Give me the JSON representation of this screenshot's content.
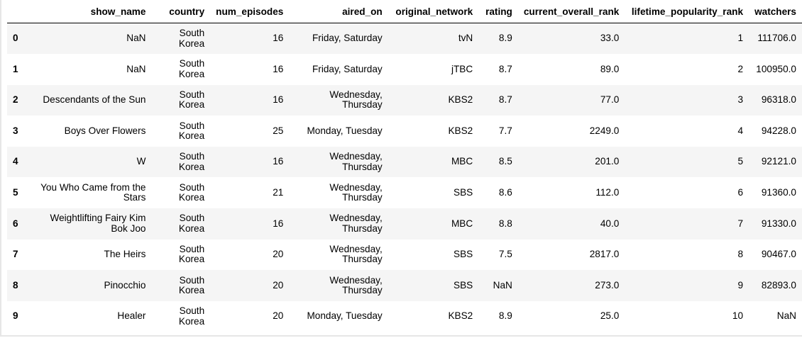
{
  "table": {
    "index_header": "",
    "columns": [
      "show_name",
      "country",
      "num_episodes",
      "aired_on",
      "original_network",
      "rating",
      "current_overall_rank",
      "lifetime_popularity_rank",
      "watchers"
    ],
    "rows": [
      {
        "index": "0",
        "cells": [
          "NaN",
          "South Korea",
          "16",
          "Friday, Saturday",
          "tvN",
          "8.9",
          "33.0",
          "1",
          "111706.0"
        ]
      },
      {
        "index": "1",
        "cells": [
          "NaN",
          "South Korea",
          "16",
          "Friday, Saturday",
          "jTBC",
          "8.7",
          "89.0",
          "2",
          "100950.0"
        ]
      },
      {
        "index": "2",
        "cells": [
          "Descendants of the Sun",
          "South Korea",
          "16",
          "Wednesday, Thursday",
          "KBS2",
          "8.7",
          "77.0",
          "3",
          "96318.0"
        ]
      },
      {
        "index": "3",
        "cells": [
          "Boys Over Flowers",
          "South Korea",
          "25",
          "Monday, Tuesday",
          "KBS2",
          "7.7",
          "2249.0",
          "4",
          "94228.0"
        ]
      },
      {
        "index": "4",
        "cells": [
          "W",
          "South Korea",
          "16",
          "Wednesday, Thursday",
          "MBC",
          "8.5",
          "201.0",
          "5",
          "92121.0"
        ]
      },
      {
        "index": "5",
        "cells": [
          "You Who Came from the Stars",
          "South Korea",
          "21",
          "Wednesday, Thursday",
          "SBS",
          "8.6",
          "112.0",
          "6",
          "91360.0"
        ]
      },
      {
        "index": "6",
        "cells": [
          "Weightlifting Fairy Kim Bok Joo",
          "South Korea",
          "16",
          "Wednesday, Thursday",
          "MBC",
          "8.8",
          "40.0",
          "7",
          "91330.0"
        ]
      },
      {
        "index": "7",
        "cells": [
          "The Heirs",
          "South Korea",
          "20",
          "Wednesday, Thursday",
          "SBS",
          "7.5",
          "2817.0",
          "8",
          "90467.0"
        ]
      },
      {
        "index": "8",
        "cells": [
          "Pinocchio",
          "South Korea",
          "20",
          "Wednesday, Thursday",
          "SBS",
          "NaN",
          "273.0",
          "9",
          "82893.0"
        ]
      },
      {
        "index": "9",
        "cells": [
          "Healer",
          "South Korea",
          "20",
          "Monday, Tuesday",
          "KBS2",
          "8.9",
          "25.0",
          "10",
          "NaN"
        ]
      }
    ]
  }
}
